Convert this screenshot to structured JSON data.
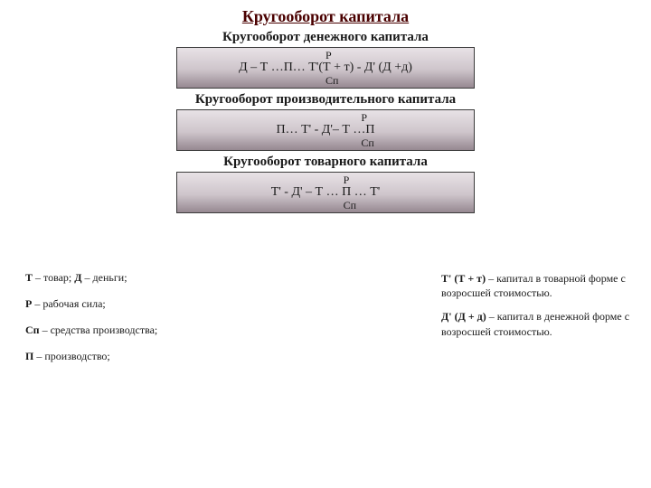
{
  "mainTitle": "Кругооборот капитала",
  "blocks": [
    {
      "subtitle": "Кругооборот денежного капитала",
      "formula": "Д – Т    …П… Т'(Т + т) - Д' (Д +д)",
      "pLeft": "50%",
      "spLeft": "50%"
    },
    {
      "subtitle": "Кругооборот производительного капитала",
      "formula": "П… Т' - Д'– Т    …П",
      "pLeft": "62%",
      "spLeft": "62%"
    },
    {
      "subtitle": "Кругооборот товарного капитала",
      "formula": "Т'  - Д'  – Т    … П  … Т'",
      "pLeft": "56%",
      "spLeft": "56%"
    }
  ],
  "labels": {
    "p": "Р",
    "sp": "Сп"
  },
  "legendLeft": [
    {
      "b": "Т",
      "t": " – товар; ",
      "b2": "Д",
      "t2": " – деньги;"
    },
    {
      "b": "Р",
      "t": " – рабочая сила;"
    },
    {
      "b": "Сп",
      "t": " – средства производства;"
    },
    {
      "b": "П",
      "t": " – производство;"
    }
  ],
  "legendRight": [
    {
      "b": "Т' (Т + т)",
      "t": " – капитал в товарной форме с возросшей стоимостью."
    },
    {
      "b": "Д' (Д + д)",
      "t": " – капитал в денежной форме с возросшей стоимостью."
    }
  ],
  "style": {
    "boxWidth": 330,
    "borderColor": "#3a3a3a",
    "gradTop": "#e8e2e6",
    "gradMid": "#cec5cb",
    "gradBot": "#968891"
  }
}
